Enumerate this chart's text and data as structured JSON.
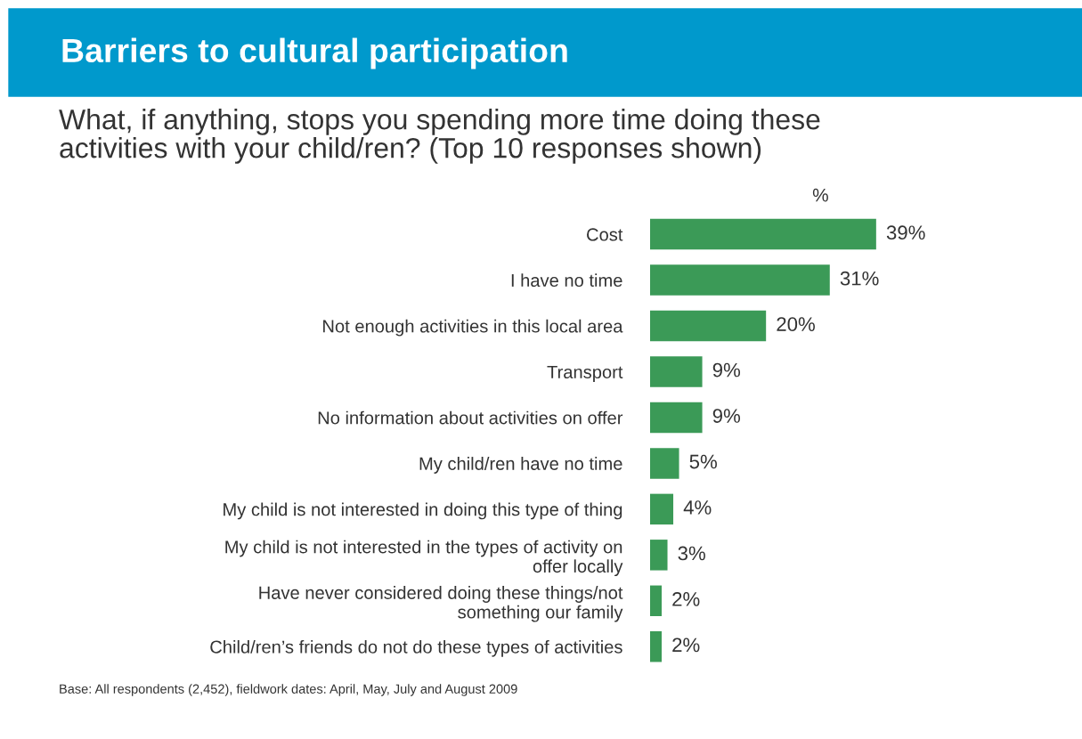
{
  "chart_data": {
    "type": "bar",
    "orientation": "horizontal",
    "title": "Barriers to cultural participation",
    "subtitle": "What, if anything, stops you spending more time doing these\nactivities with your child/ren? (Top 10 responses shown)",
    "xlabel": "%",
    "categories": [
      "Cost",
      "I have no time",
      "Not enough activities in this local area",
      "Transport",
      "No information about activities on offer",
      "My child/ren have no time",
      "My child is not interested in doing this type of thing",
      "My child is not interested in the types of activity on\noffer locally",
      "Have never considered doing these things/not\nsomething our family",
      "Child/ren’s friends do not do these types of activities"
    ],
    "values": [
      39,
      31,
      20,
      9,
      9,
      5,
      4,
      3,
      2,
      2
    ],
    "value_labels": [
      "39%",
      "31%",
      "20%",
      "9%",
      "9%",
      "5%",
      "4%",
      "3%",
      "2%",
      "2%"
    ],
    "color": "#3b9a57",
    "annotations": [
      "Base: All respondents (2,452), fieldwork dates: April, May, July and August 2009"
    ]
  }
}
